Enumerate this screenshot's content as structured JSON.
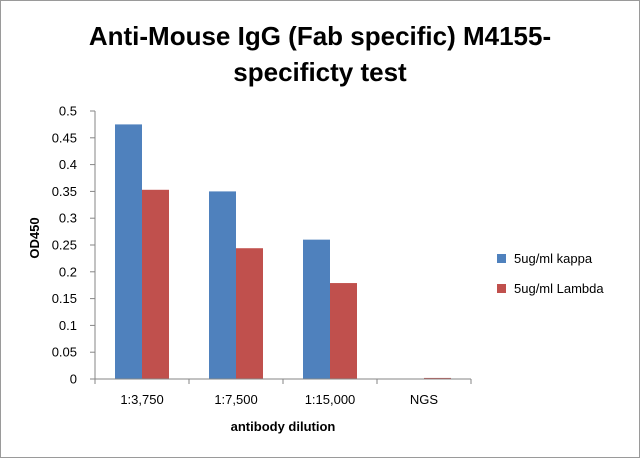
{
  "chart_data": {
    "type": "bar",
    "title_lines": [
      "Anti-Mouse IgG (Fab specific) M4155-",
      "specificty test"
    ],
    "xlabel": "antibody dilution",
    "ylabel": "OD450",
    "categories": [
      "1:3,750",
      "1:7,500",
      "1:15,000",
      "NGS"
    ],
    "series": [
      {
        "name": "5ug/ml kappa",
        "color": "#4f81bd",
        "values": [
          0.475,
          0.35,
          0.26,
          0
        ]
      },
      {
        "name": "5ug/ml Lambda",
        "color": "#c0504d",
        "values": [
          0.353,
          0.244,
          0.179,
          0.002
        ]
      }
    ],
    "ylim": [
      0,
      0.5
    ],
    "yticks": [
      "0",
      "0.05",
      "0.1",
      "0.15",
      "0.2",
      "0.25",
      "0.3",
      "0.35",
      "0.4",
      "0.45",
      "0.5"
    ],
    "ytick_values": [
      0,
      0.05,
      0.1,
      0.15,
      0.2,
      0.25,
      0.3,
      0.35,
      0.4,
      0.45,
      0.5
    ],
    "grid": false,
    "legend_position": "right"
  }
}
